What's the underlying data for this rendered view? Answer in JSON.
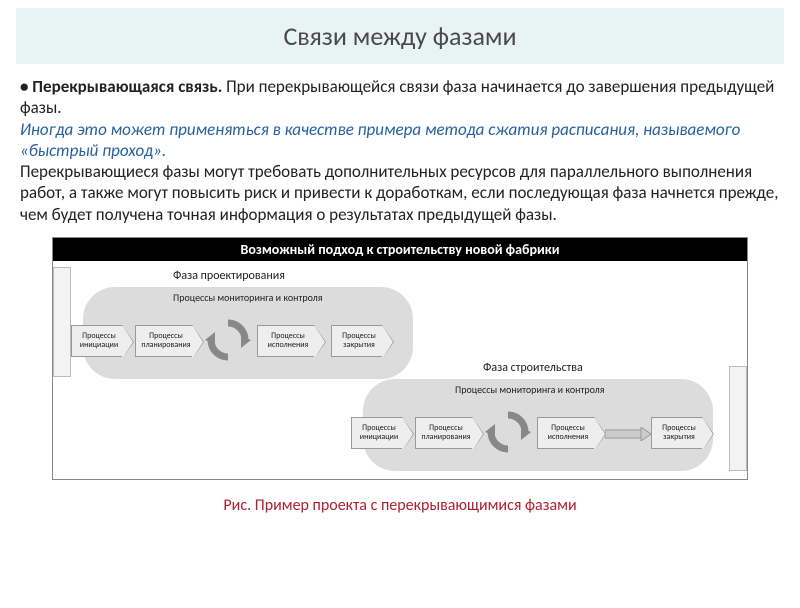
{
  "title": "Связи между фазами",
  "paragraph": {
    "lead_bold": "• Перекрывающаяся связь.",
    "lead_rest": " При перекрывающейся связи фаза начинается до завершения предыдущей фазы.",
    "italic": "Иногда это может применяться в качестве примера метода сжатия расписания, называемого «быстрый проход».",
    "rest": " Перекрывающиеся фазы могут требовать дополнительных ресурсов для параллельного выполнения работ, а также могут повысить риск и привести к доработкам, если последующая фаза начнется прежде, чем будет получена точная информация о результатах предыдущей фазы."
  },
  "diagram": {
    "header": "Возможный подход к строительству новой фабрики",
    "phase1_title": "Фаза проектирования",
    "phase2_title": "Фаза строительства",
    "monitoring_label": "Процессы мониторинга и контроля",
    "box_initiation": "Процессы\nинициации",
    "box_planning": "Процессы\nпланирования",
    "box_execution": "Процессы\nисполнения",
    "box_closing": "Процессы\nзакрытия"
  },
  "caption": "Рис. Пример проекта с перекрывающимися фазами",
  "colors": {
    "title_bg": "#e8f4f4",
    "italic_text": "#2560a0",
    "caption_text": "#b02030",
    "blob": "#dcdcdc",
    "arrow_fill": "#eeeeee",
    "arrow_border": "#999999",
    "diagram_header_bg": "#000000"
  }
}
